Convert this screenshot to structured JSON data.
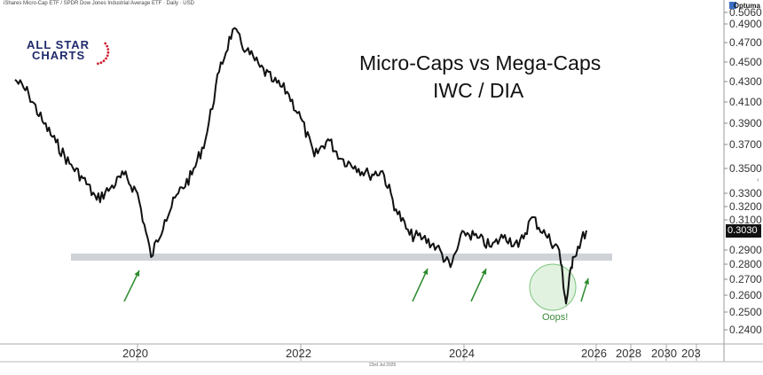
{
  "header": {
    "source_text": "iShares Micro-Cap ETF / SPDR Dow Jones Industrial Average ETF · Daily · USD"
  },
  "provider_logo": {
    "text": "Optuma"
  },
  "brand_logo": {
    "line1": "ALL STAR",
    "line2": "CHARTS",
    "icon": "stars-arc-icon"
  },
  "footer": {
    "date": "23rd Jul 2025"
  },
  "annotations": {
    "oops": "Oops!",
    "support_line_value": 0.285,
    "arrow_icon": "up-right-arrow-icon",
    "circle_icon": "highlight-circle-icon"
  },
  "colors": {
    "line": "#111111",
    "support_band": "#cfd3d8",
    "arrow": "#2e8b2e",
    "circle_fill": "#cdeacb",
    "circle_stroke": "#7cc47c",
    "brand_navy": "#1f2a6b",
    "brand_red": "#cc2233"
  },
  "price_tag": {
    "value": "0.3030"
  },
  "chart_data": {
    "type": "line",
    "title": "Micro-Caps vs Mega-Caps",
    "subtitle": "IWC / DIA",
    "xlabel": "",
    "ylabel": "",
    "x_tick_labels": [
      "2020",
      "2022",
      "2024",
      "2026",
      "2028",
      "2030",
      "203"
    ],
    "y_tick_labels": [
      "0.5060",
      "0.4900",
      "0.4700",
      "0.4500",
      "0.4300",
      "0.4100",
      "0.3900",
      "0.3700",
      "0.3500",
      "0.3300",
      "0.3200",
      "0.3100",
      "0.2900",
      "0.2800",
      "0.2700",
      "0.2600",
      "0.2500",
      "0.2400"
    ],
    "y_axis_side": "right",
    "ylim": [
      0.23,
      0.506
    ],
    "grid": false,
    "series": [
      {
        "x": [
          "2018-07",
          "2018-09",
          "2018-11",
          "2019-01",
          "2019-03",
          "2019-05",
          "2019-07",
          "2019-09",
          "2019-11",
          "2020-01",
          "2020-03",
          "2020-05",
          "2020-07",
          "2020-09",
          "2020-11",
          "2021-01",
          "2021-03",
          "2021-05",
          "2021-07",
          "2021-09",
          "2021-11",
          "2022-01",
          "2022-03",
          "2022-05",
          "2022-07",
          "2022-09",
          "2022-11",
          "2023-01",
          "2023-03",
          "2023-05",
          "2023-07",
          "2023-09",
          "2023-11",
          "2024-01",
          "2024-03",
          "2024-05",
          "2024-07",
          "2024-09",
          "2024-11",
          "2025-01",
          "2025-03",
          "2025-04",
          "2025-05",
          "2025-07"
        ],
        "y": [
          0.432,
          0.418,
          0.392,
          0.372,
          0.354,
          0.342,
          0.325,
          0.334,
          0.345,
          0.33,
          0.285,
          0.31,
          0.33,
          0.345,
          0.375,
          0.44,
          0.484,
          0.462,
          0.445,
          0.43,
          0.42,
          0.395,
          0.36,
          0.375,
          0.358,
          0.352,
          0.345,
          0.348,
          0.318,
          0.3,
          0.298,
          0.292,
          0.278,
          0.302,
          0.298,
          0.292,
          0.3,
          0.292,
          0.312,
          0.3,
          0.29,
          0.255,
          0.285,
          0.303
        ]
      }
    ]
  }
}
